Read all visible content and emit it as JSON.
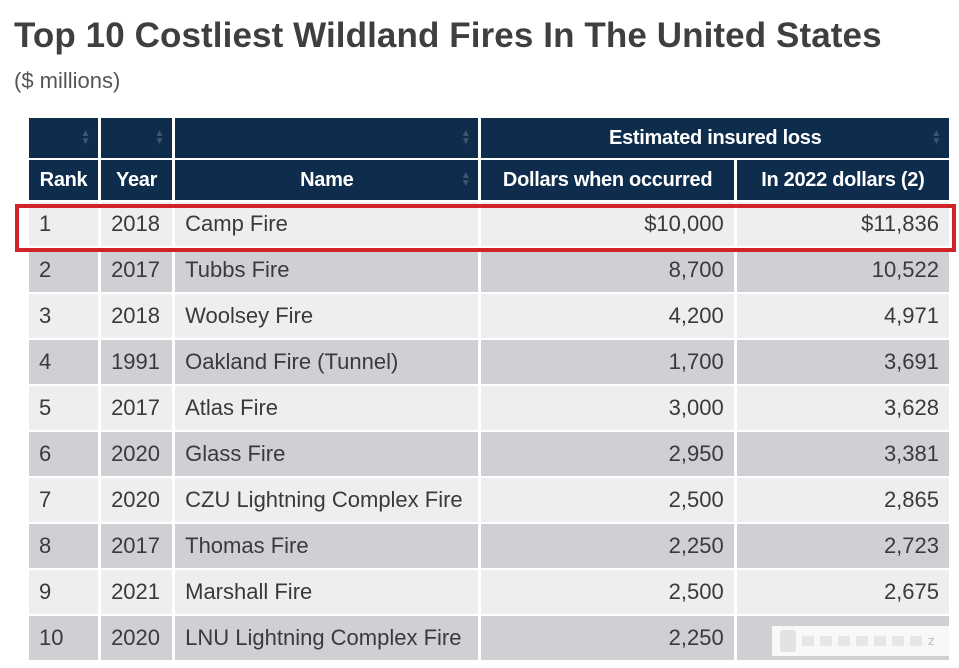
{
  "title": "Top 10 Costliest Wildland Fires In The United States",
  "subtitle": "($ millions)",
  "table": {
    "group_header": "Estimated insured loss",
    "columns": [
      "Rank",
      "Year",
      "Name",
      "Dollars when occurred",
      "In 2022 dollars (2)"
    ],
    "rows": [
      [
        "1",
        "2018",
        "Camp Fire",
        "$10,000",
        "$11,836"
      ],
      [
        "2",
        "2017",
        "Tubbs Fire",
        "8,700",
        "10,522"
      ],
      [
        "3",
        "2018",
        "Woolsey Fire",
        "4,200",
        "4,971"
      ],
      [
        "4",
        "1991",
        "Oakland Fire (Tunnel)",
        "1,700",
        "3,691"
      ],
      [
        "5",
        "2017",
        "Atlas Fire",
        "3,000",
        "3,628"
      ],
      [
        "6",
        "2020",
        "Glass Fire",
        "2,950",
        "3,381"
      ],
      [
        "7",
        "2020",
        "CZU Lightning Complex Fire",
        "2,500",
        "2,865"
      ],
      [
        "8",
        "2017",
        "Thomas Fire",
        "2,250",
        "2,723"
      ],
      [
        "9",
        "2021",
        "Marshall Fire",
        "2,500",
        "2,675"
      ],
      [
        "10",
        "2020",
        "LNU Lightning Complex Fire",
        "2,250",
        ""
      ]
    ],
    "highlighted_row_rank": "1"
  },
  "colors": {
    "header_bg": "#0e2d4d",
    "row_light": "#eeeef1",
    "row_dark": "#cfd0d4",
    "highlight_border": "#d3232a",
    "title_text": "#3f3f3f"
  },
  "icons": {
    "sort": "sort-arrows-icon",
    "watermark": "watermark-logo-icon"
  },
  "watermark_text": "z"
}
